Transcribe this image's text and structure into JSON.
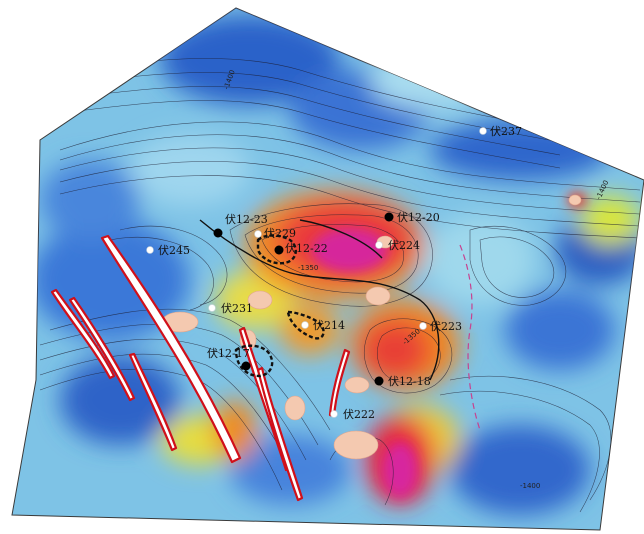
{
  "map": {
    "colors": {
      "low": "#2b62c9",
      "mid": "#8fd0ea",
      "high_yellow": "#f2e23a",
      "high_orange": "#f28a1e",
      "high_red": "#e8283e",
      "peak_magenta": "#d6259b",
      "sand_body": "#f4c9b0",
      "fault_fill": "#ffffff",
      "fault_edge": "#d0101a",
      "contour": "#1b1b2e",
      "boundary": "#c7428f"
    },
    "contour_labels": [
      "-1400",
      "-1350",
      "-1400",
      "-1350",
      "-1400"
    ],
    "wells": [
      {
        "id": "w237",
        "name": "伏237",
        "type": "white"
      },
      {
        "id": "w1220",
        "name": "伏12-20",
        "type": "black"
      },
      {
        "id": "w1223",
        "name": "伏12-23",
        "type": "black"
      },
      {
        "id": "w229",
        "name": "伏229",
        "type": "white"
      },
      {
        "id": "w1222",
        "name": "伏12-22",
        "type": "black"
      },
      {
        "id": "w224",
        "name": "伏224",
        "type": "white"
      },
      {
        "id": "w245",
        "name": "伏245",
        "type": "white"
      },
      {
        "id": "w231",
        "name": "伏231",
        "type": "white"
      },
      {
        "id": "w214",
        "name": "伏214",
        "type": "white"
      },
      {
        "id": "w223",
        "name": "伏223",
        "type": "white"
      },
      {
        "id": "w1217",
        "name": "伏12-17",
        "type": "black"
      },
      {
        "id": "w1218",
        "name": "伏12-18",
        "type": "black"
      },
      {
        "id": "w222",
        "name": "伏222",
        "type": "white"
      }
    ]
  }
}
